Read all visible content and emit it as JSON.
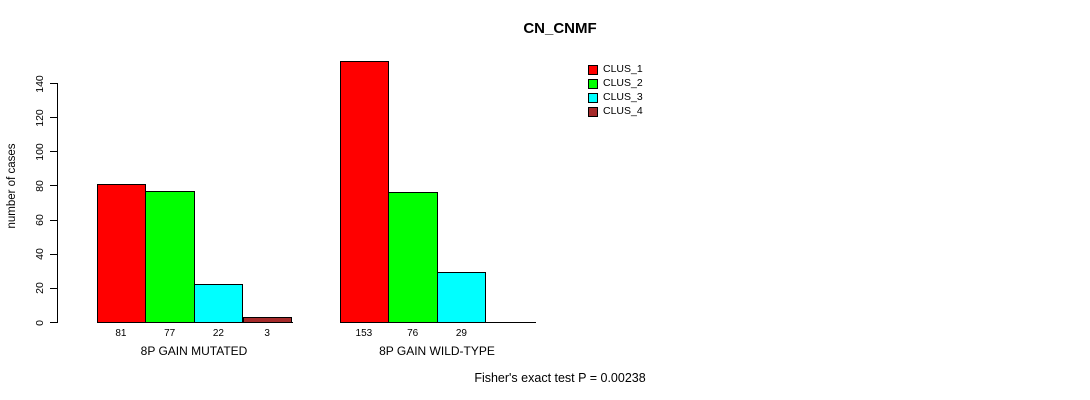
{
  "window": {
    "background": "#ffffff"
  },
  "chart_data": {
    "type": "bar",
    "title": "CN_CNMF",
    "ylabel": "number of cases",
    "xlabel": "",
    "ylim": [
      0,
      155
    ],
    "yticks": [
      0,
      20,
      40,
      60,
      80,
      100,
      120,
      140
    ],
    "grid": false,
    "legend_position": "top-right",
    "categories": [
      "8P GAIN MUTATED",
      "8P GAIN WILD-TYPE"
    ],
    "series": [
      {
        "name": "CLUS_1",
        "color": "#ff0000",
        "values": [
          81,
          153
        ]
      },
      {
        "name": "CLUS_2",
        "color": "#00ff00",
        "values": [
          77,
          76
        ]
      },
      {
        "name": "CLUS_3",
        "color": "#00ffff",
        "values": [
          22,
          29
        ]
      },
      {
        "name": "CLUS_4",
        "color": "#a52a2a",
        "values": [
          3,
          0
        ]
      }
    ],
    "bar_value_labels": [
      [
        "81",
        "77",
        "22",
        "3"
      ],
      [
        "153",
        "76",
        "29",
        ""
      ]
    ],
    "annotation": "Fisher's exact test P = 0.00238",
    "axis_color": "#000000",
    "bar_border_color": "#000000"
  }
}
